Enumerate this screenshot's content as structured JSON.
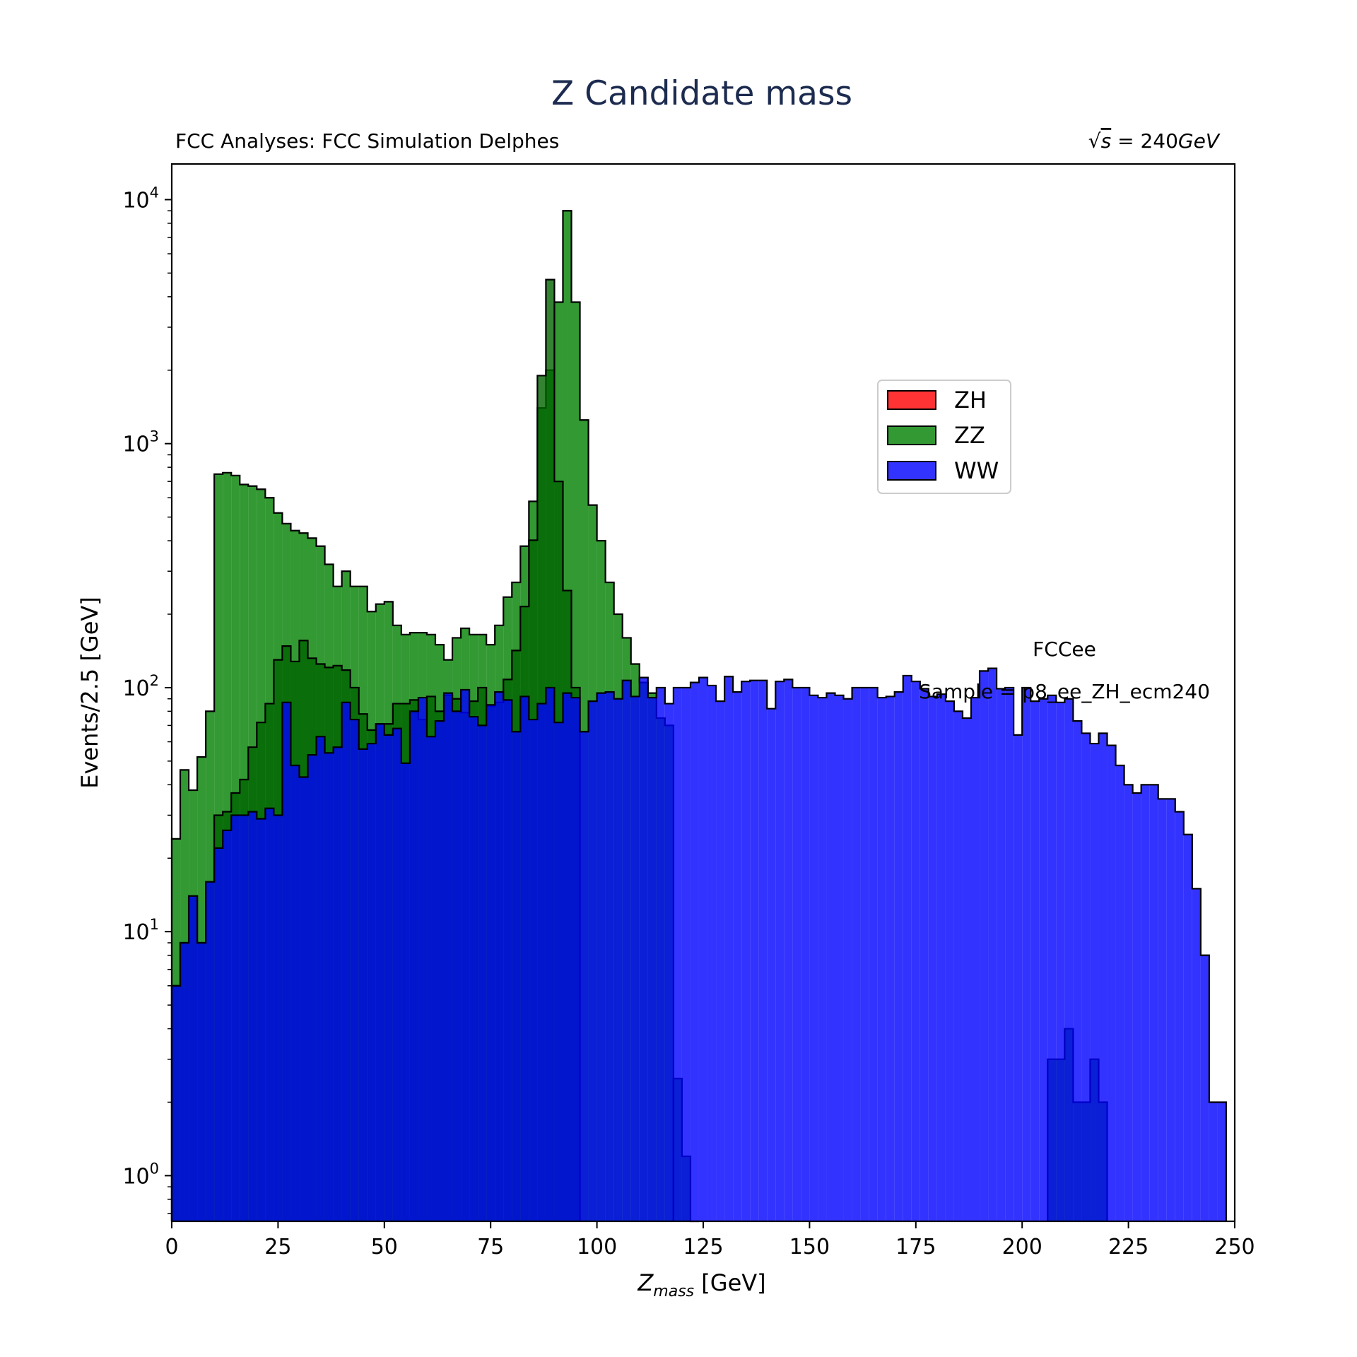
{
  "chart_data": {
    "type": "histogram",
    "title": "Z Candidate mass",
    "subtitle_left": "FCC Analyses: FCC Simulation Delphes",
    "subtitle_right_prefix": "√",
    "subtitle_right_s": "s",
    "subtitle_right_value": " = 240",
    "subtitle_right_unit": "GeV",
    "xlabel_main": "Z",
    "xlabel_sub": "mass",
    "xlabel_unit": " [GeV]",
    "ylabel": "Events/2.5 [GeV]",
    "yscale": "log",
    "xlim": [
      0,
      250
    ],
    "ylim": [
      0.65,
      14000
    ],
    "x_ticks": [
      "0",
      "25",
      "50",
      "75",
      "100",
      "125",
      "150",
      "175",
      "200",
      "225",
      "250"
    ],
    "y_ticks": [
      {
        "base": "10",
        "exp": "0",
        "value": 1
      },
      {
        "base": "10",
        "exp": "1",
        "value": 10
      },
      {
        "base": "10",
        "exp": "2",
        "value": 100
      },
      {
        "base": "10",
        "exp": "3",
        "value": 1000
      },
      {
        "base": "10",
        "exp": "4",
        "value": 10000
      }
    ],
    "bin_width": 2.0,
    "legend_position": "upper right (inset)",
    "annotations": [
      "FCCee",
      "Sample = p8_ee_ZH_ecm240"
    ],
    "series": [
      {
        "name": "ZZ",
        "color": "#008000",
        "alpha": 0.8,
        "x_start": 0,
        "values": [
          24,
          46,
          38,
          52,
          80,
          750,
          760,
          740,
          680,
          670,
          650,
          600,
          520,
          470,
          440,
          430,
          410,
          380,
          320,
          260,
          300,
          260,
          260,
          205,
          220,
          225,
          180,
          165,
          168,
          168,
          165,
          150,
          130,
          160,
          175,
          165,
          165,
          150,
          180,
          235,
          270,
          380,
          580,
          1400,
          2000,
          3800,
          9000,
          3800,
          1250,
          560,
          400,
          270,
          200,
          160,
          125,
          105,
          95,
          75,
          70
        ]
      },
      {
        "name": "ZZ",
        "color": "#008000",
        "alpha": 0.8,
        "x_start": 118,
        "values": [
          2.5,
          1.2,
          0.5
        ]
      },
      {
        "name": "ZZ",
        "color": "#008000",
        "alpha": 0.8,
        "x_start": 206,
        "values": [
          3,
          3,
          4,
          2,
          2,
          3,
          2
        ]
      },
      {
        "name": "ZZ (inner)",
        "color": "#006400",
        "alpha": 0.8,
        "x_start": 0,
        "values": [
          6,
          9,
          14,
          9,
          16,
          30,
          31,
          37,
          42,
          57,
          72,
          86,
          130,
          148,
          128,
          156,
          132,
          125,
          121,
          123,
          118,
          100,
          78,
          67,
          71,
          71,
          86,
          86,
          89,
          74,
          92,
          80,
          93,
          90,
          79,
          88,
          100,
          84,
          87,
          108,
          142,
          215,
          402,
          1900,
          4700,
          700,
          250,
          100
        ]
      },
      {
        "name": "WW",
        "color": "#0000ff",
        "alpha": 0.8,
        "x_start": 0,
        "values": [
          6,
          9,
          14,
          9,
          16,
          22,
          26,
          30,
          30,
          31,
          29,
          32,
          30,
          87,
          48,
          43,
          53,
          63,
          54,
          57,
          87,
          74,
          56,
          59,
          71,
          64,
          68,
          49,
          80,
          91,
          63,
          73,
          95,
          80,
          98,
          76,
          70,
          85,
          96,
          89,
          66,
          92,
          74,
          86,
          100,
          72,
          95,
          91,
          66,
          88,
          95,
          96,
          90,
          107,
          92,
          110,
          91,
          100,
          86,
          100,
          100,
          105,
          110,
          102,
          88,
          111,
          96,
          106,
          107,
          107,
          82,
          106,
          108,
          100,
          100,
          93,
          91,
          95,
          93,
          90,
          100,
          100,
          100,
          91,
          92,
          96,
          112,
          106,
          99,
          92,
          94,
          88,
          80,
          75,
          91,
          117,
          120,
          99,
          100,
          64,
          100,
          88,
          90,
          93,
          87,
          90,
          73,
          65,
          59,
          65,
          58,
          48,
          40,
          37,
          40,
          40,
          35,
          35,
          31,
          25,
          15,
          8,
          2,
          2
        ]
      }
    ]
  },
  "legend": [
    {
      "label": "ZH",
      "color": "#ff0000"
    },
    {
      "label": "ZZ",
      "color": "#008000"
    },
    {
      "label": "WW",
      "color": "#0000ff"
    }
  ]
}
